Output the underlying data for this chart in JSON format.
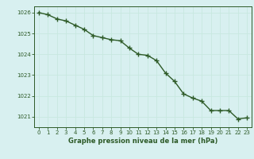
{
  "x": [
    0,
    1,
    2,
    3,
    4,
    5,
    6,
    7,
    8,
    9,
    10,
    11,
    12,
    13,
    14,
    15,
    16,
    17,
    18,
    19,
    20,
    21,
    22,
    23
  ],
  "y": [
    1026.0,
    1025.9,
    1025.7,
    1025.6,
    1025.4,
    1025.2,
    1024.9,
    1024.8,
    1024.7,
    1024.65,
    1024.3,
    1024.0,
    1023.95,
    1023.7,
    1023.1,
    1022.7,
    1022.1,
    1021.9,
    1021.75,
    1021.3,
    1021.3,
    1021.3,
    1020.9,
    1020.95
  ],
  "line_color": "#2d5a27",
  "marker": "+",
  "bg_color": "#d8f0f0",
  "grid_color": "#c8e8e0",
  "xlabel": "Graphe pression niveau de la mer (hPa)",
  "xlabel_color": "#2d5a27",
  "tick_color": "#2d5a27",
  "spine_color": "#2d5a27",
  "ylim": [
    1020.5,
    1026.3
  ],
  "yticks": [
    1021,
    1022,
    1023,
    1024,
    1025,
    1026
  ],
  "xlim": [
    -0.5,
    23.5
  ],
  "xticks": [
    0,
    1,
    2,
    3,
    4,
    5,
    6,
    7,
    8,
    9,
    10,
    11,
    12,
    13,
    14,
    15,
    16,
    17,
    18,
    19,
    20,
    21,
    22,
    23
  ],
  "linewidth": 1.0,
  "markersize": 4,
  "tick_fontsize": 5.0,
  "xlabel_fontsize": 6.0
}
